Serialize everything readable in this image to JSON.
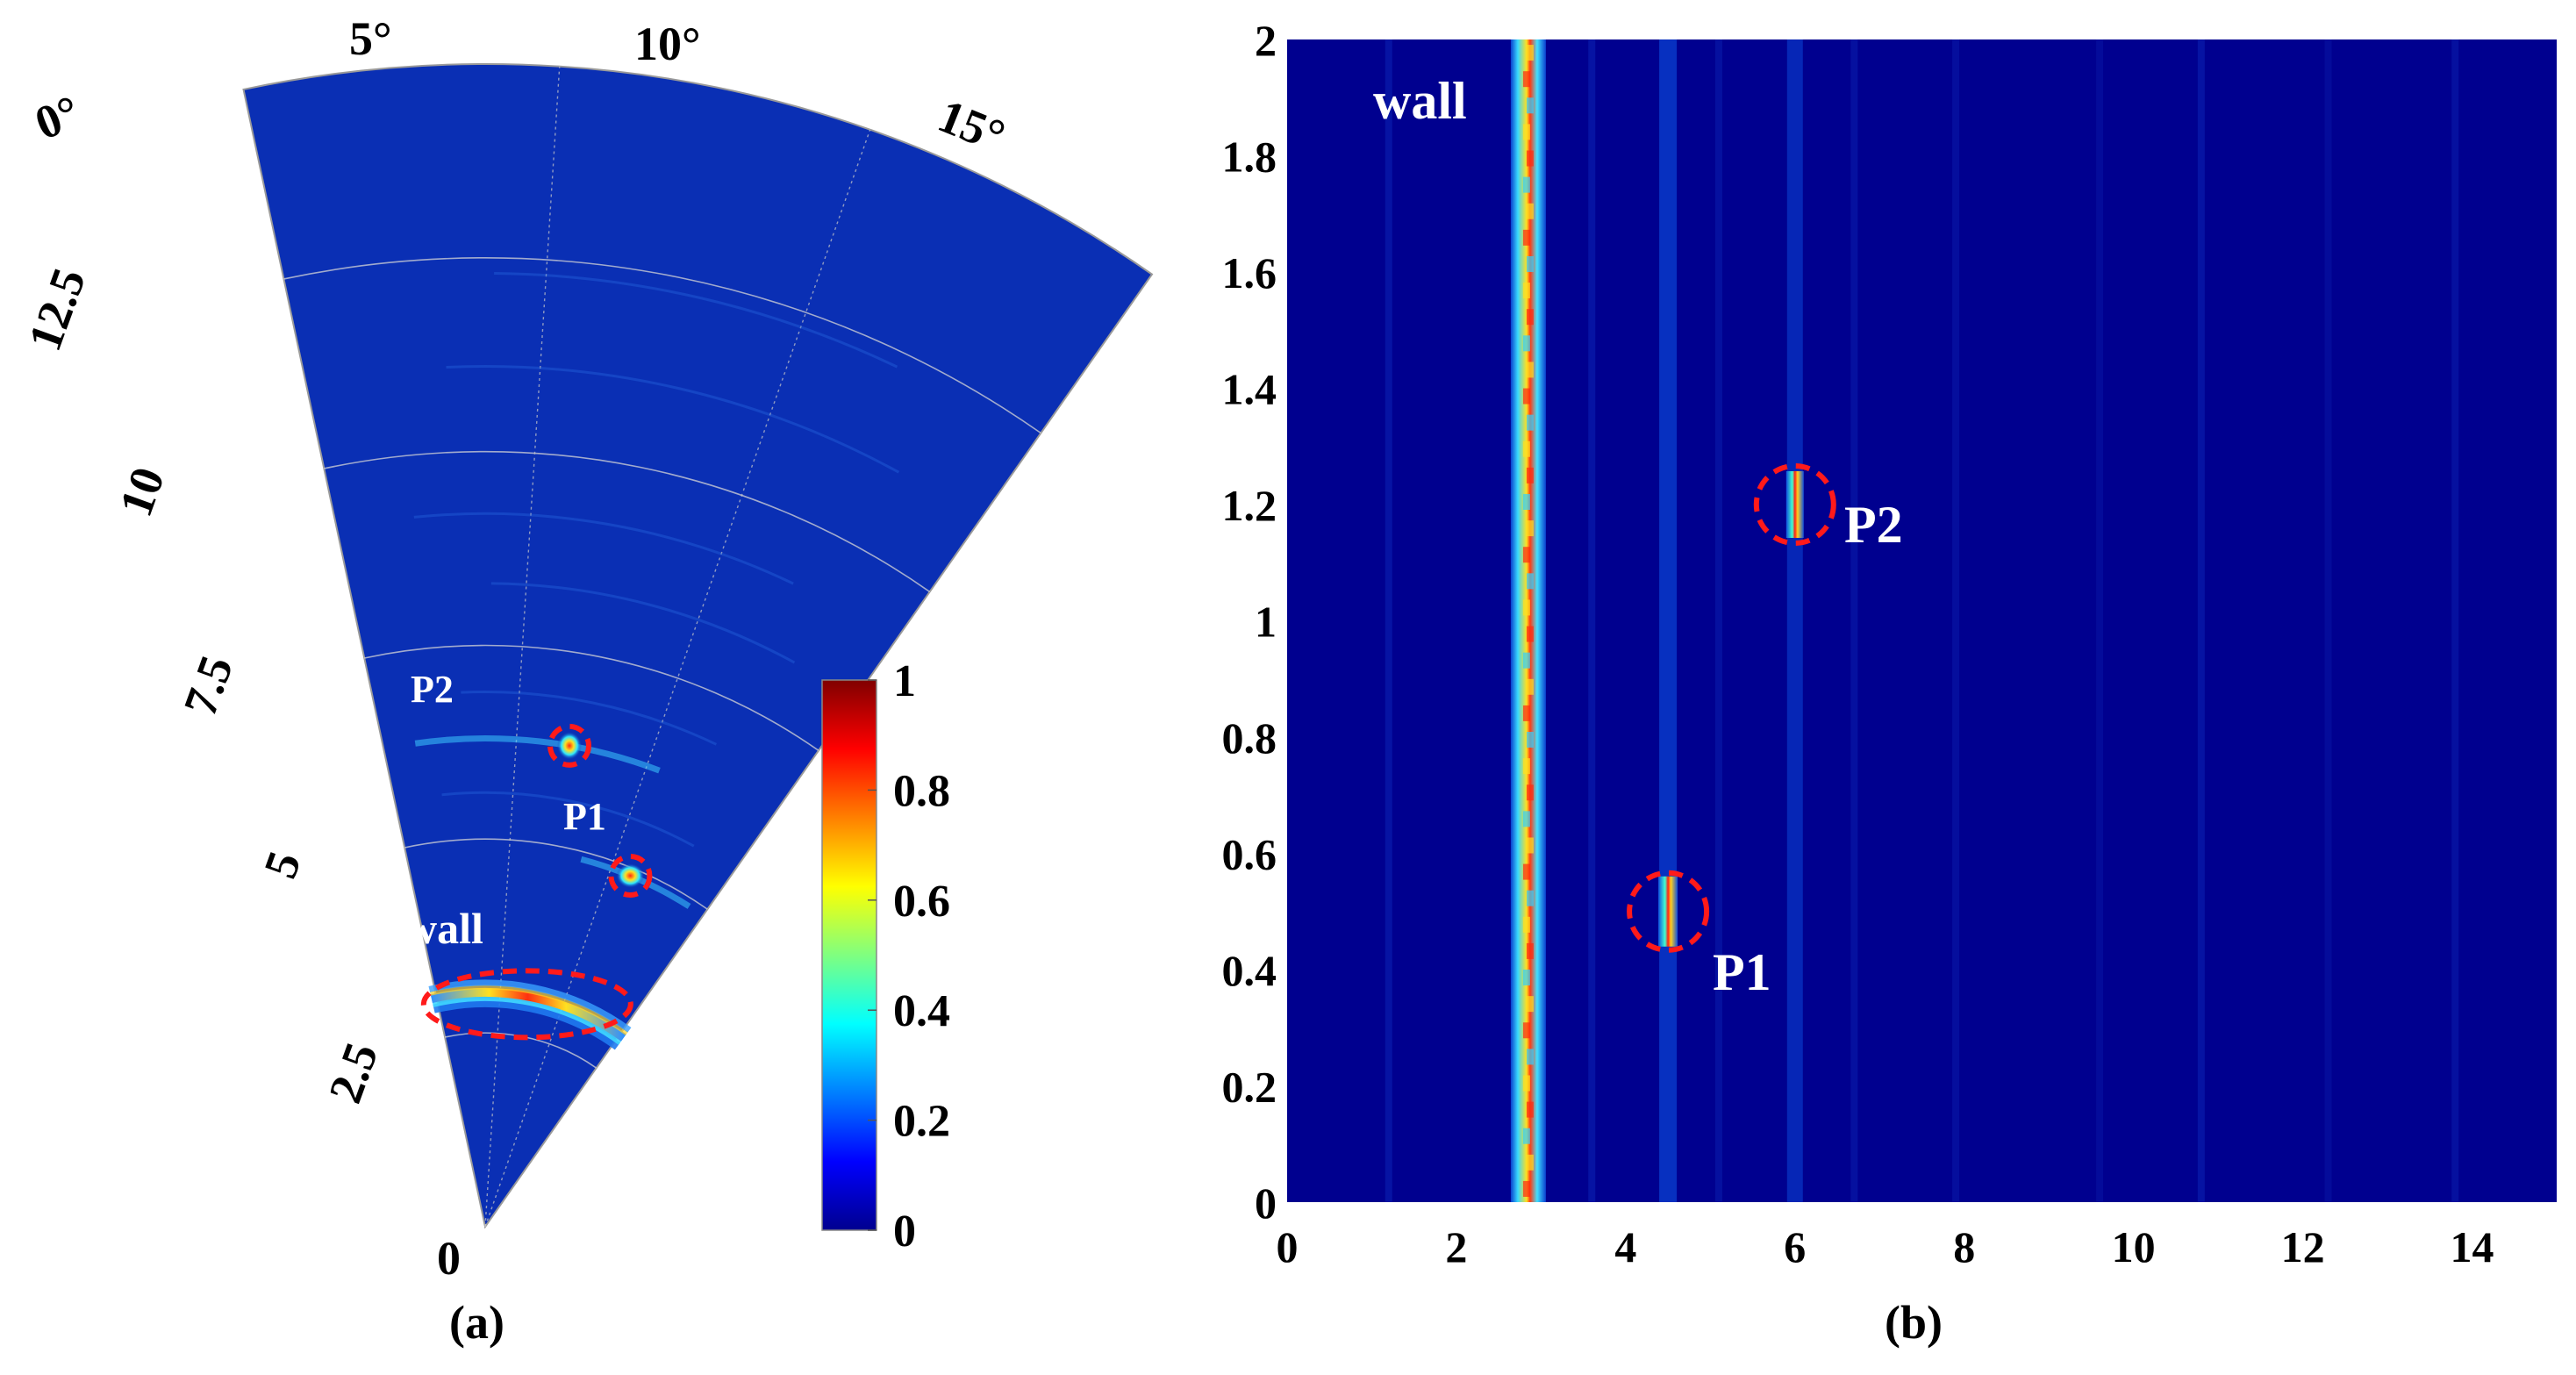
{
  "colors": {
    "background": "#00008f",
    "fan_background": "#0a2fb4",
    "marker_circle": "#ff1a1a",
    "text_on_plot": "#ffffff"
  },
  "chart_data": [
    {
      "id": "a",
      "type": "heatmap",
      "subtype": "polar-sector",
      "caption": "(a)",
      "angle_range_deg": [
        0,
        15
      ],
      "angle_ticks": [
        "0°",
        "5°",
        "10°",
        "15°"
      ],
      "radial_range": [
        0,
        15
      ],
      "radial_ticks": [
        "0",
        "2.5",
        "5",
        "7.5",
        "10",
        "12.5"
      ],
      "colorbar": {
        "min": 0,
        "max": 1,
        "ticks": [
          "0",
          "0.2",
          "0.4",
          "0.6",
          "0.8",
          "1"
        ]
      },
      "annotations": [
        {
          "label": "wall",
          "range": 3.0,
          "angle_deg": 7.5,
          "intensity": 0.95
        },
        {
          "label": "P1",
          "range": 4.9,
          "angle_deg": 11.0,
          "intensity": 0.85
        },
        {
          "label": "P2",
          "range": 6.3,
          "angle_deg": 7.0,
          "intensity": 0.75
        }
      ]
    },
    {
      "id": "b",
      "type": "heatmap",
      "caption": "(b)",
      "xlim": [
        0,
        15
      ],
      "ylim": [
        0,
        2
      ],
      "xticks": [
        "0",
        "2",
        "4",
        "6",
        "8",
        "10",
        "12",
        "14"
      ],
      "yticks": [
        "0",
        "0.2",
        "0.4",
        "0.6",
        "0.8",
        "1",
        "1.2",
        "1.4",
        "1.6",
        "1.8",
        "2"
      ],
      "annotations": [
        {
          "label": "wall",
          "x": 2.85,
          "y_span": [
            0,
            2
          ],
          "intensity": 0.95
        },
        {
          "label": "P1",
          "x": 4.5,
          "y": 0.5,
          "intensity": 0.9
        },
        {
          "label": "P2",
          "x": 6.0,
          "y": 1.2,
          "intensity": 0.8
        }
      ]
    }
  ]
}
